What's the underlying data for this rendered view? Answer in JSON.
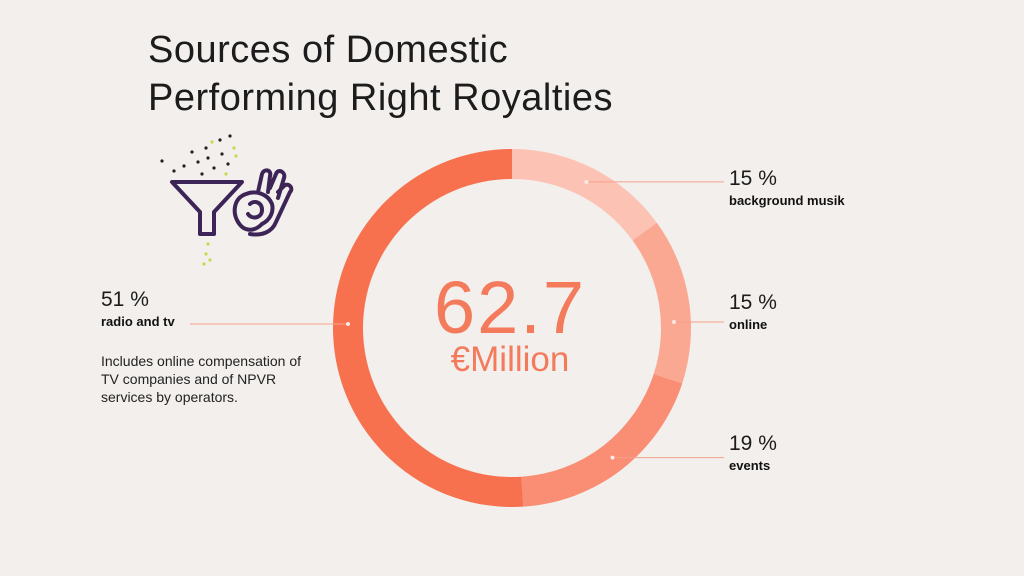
{
  "title": {
    "line1": "Sources of Domestic",
    "line2": "Performing Right Royalties"
  },
  "center": {
    "value": "62.7",
    "unit": "€Million"
  },
  "note": "Includes online compensation of TV companies and of NPVR services by operators.",
  "colors": {
    "background": "#f2efec",
    "background_musik": "#fcc3b4",
    "online": "#fba892",
    "events": "#f98e74",
    "radio_and_tv": "#f7714f",
    "center_text": "#f47a5c",
    "icon_purple": "#3d2457",
    "icon_dots": "#c6d94b"
  },
  "icons": [
    "funnel-icon",
    "ok-hand-icon"
  ],
  "chart_data": {
    "type": "pie",
    "style": "donut",
    "start": "top, clockwise",
    "slices": [
      {
        "label": "background musik",
        "value": 15,
        "display": "15 %",
        "color": "#fcc3b4"
      },
      {
        "label": "online",
        "value": 15,
        "display": "15 %",
        "color": "#fba892"
      },
      {
        "label": "events",
        "value": 19,
        "display": "19 %",
        "color": "#f98e74"
      },
      {
        "label": "radio and tv",
        "value": 51,
        "display": "51 %",
        "color": "#f7714f"
      }
    ],
    "total": "62.7",
    "total_unit": "€Million"
  }
}
